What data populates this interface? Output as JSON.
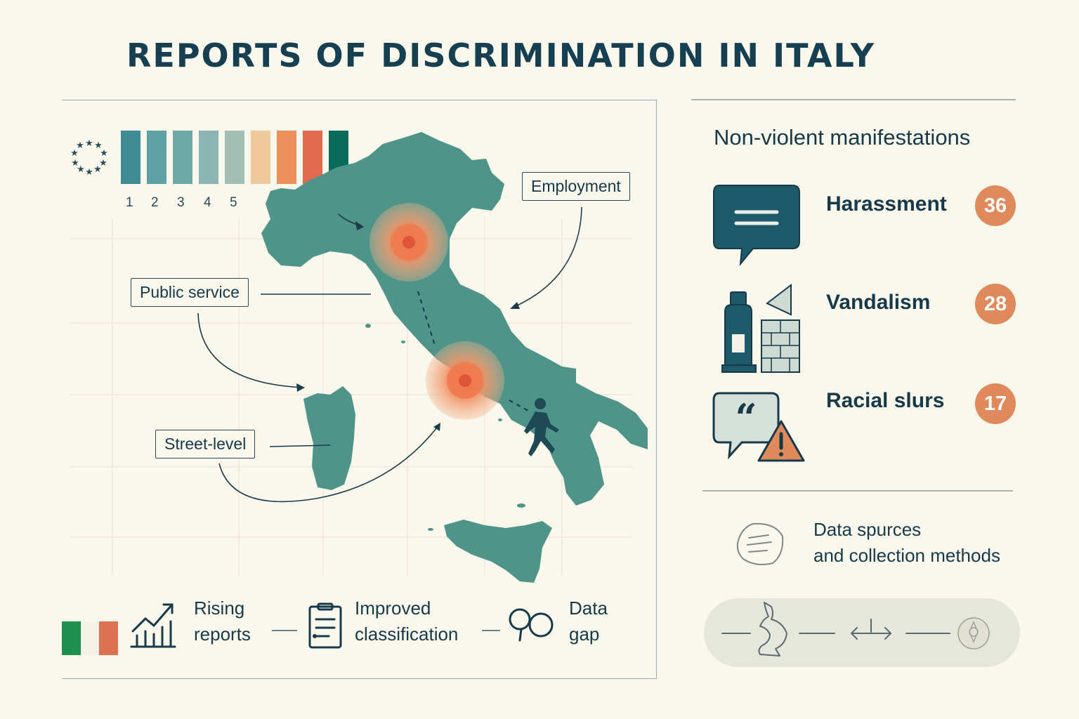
{
  "title": "REPORTS OF DISCRIMINATION IN ITALY",
  "scale": {
    "numbers": [
      "1",
      "2",
      "3",
      "4",
      "5"
    ],
    "colors": [
      "#3f8c95",
      "#5fa2a5",
      "#6ea9a9",
      "#8bb5b3",
      "#a3bfb5",
      "#f0c99a",
      "#ec8f5a",
      "#e06a4f",
      "#0b6b5a"
    ]
  },
  "callouts": {
    "employment": "Employment",
    "public_service": "Public service",
    "street_level": "Street-level"
  },
  "sidebar": {
    "heading": "Non-violent manifestations",
    "items": [
      {
        "label": "Harassment",
        "count": "36",
        "icon": "speech-bubble-icon"
      },
      {
        "label": "Vandalism",
        "count": "28",
        "icon": "spray-can-wall-icon"
      },
      {
        "label": "Racial slurs",
        "count": "17",
        "icon": "quote-warning-icon"
      }
    ],
    "sources_line1": "Data spurces",
    "sources_line2": "and collection methods"
  },
  "bottom": {
    "rising_1": "Rising",
    "rising_2": "reports",
    "improved_1": "Improved",
    "improved_2": "classification",
    "gap_1": "Data",
    "gap_2": "gap"
  },
  "colors": {
    "map": "#4e9489",
    "hotspot": "#e8673f",
    "badge": "#e08a5c",
    "ink": "#163f52",
    "flag_green": "#1f8f4e",
    "flag_white": "#f4f1e6",
    "flag_red": "#de7152"
  }
}
